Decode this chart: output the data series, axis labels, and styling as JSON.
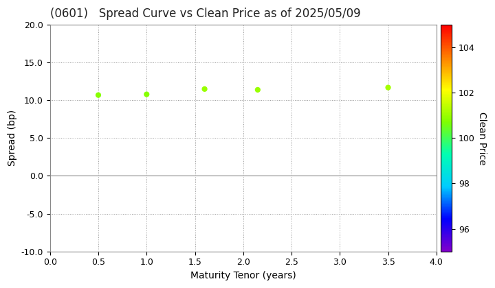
{
  "title": "(0601)   Spread Curve vs Clean Price as of 2025/05/09",
  "xlabel": "Maturity Tenor (years)",
  "ylabel": "Spread (bp)",
  "colorbar_label": "Clean Price",
  "xlim": [
    0.0,
    4.0
  ],
  "ylim": [
    -10.0,
    20.0
  ],
  "xticks": [
    0.0,
    0.5,
    1.0,
    1.5,
    2.0,
    2.5,
    3.0,
    3.5,
    4.0
  ],
  "yticks": [
    -10.0,
    -5.0,
    0.0,
    5.0,
    10.0,
    15.0,
    20.0
  ],
  "ytick_labels": [
    "-10.0",
    "-5.0",
    "0.0",
    "5.0",
    "10.0",
    "15.0",
    "20.0"
  ],
  "scatter_x": [
    0.5,
    1.0,
    1.6,
    2.15,
    3.5
  ],
  "scatter_y": [
    10.7,
    10.8,
    11.5,
    11.4,
    11.7
  ],
  "scatter_prices": [
    100.8,
    100.8,
    101.0,
    101.0,
    101.1
  ],
  "cmap": "gist_rainbow_r",
  "clim": [
    95.0,
    105.0
  ],
  "colorbar_ticks": [
    96,
    98,
    100,
    102,
    104
  ],
  "marker_size": 35,
  "background_color": "#ffffff",
  "grid_color": "#999999",
  "grid_linestyle": ":",
  "title_fontsize": 12,
  "axis_label_fontsize": 10,
  "tick_fontsize": 9,
  "colorbar_fontsize": 10
}
